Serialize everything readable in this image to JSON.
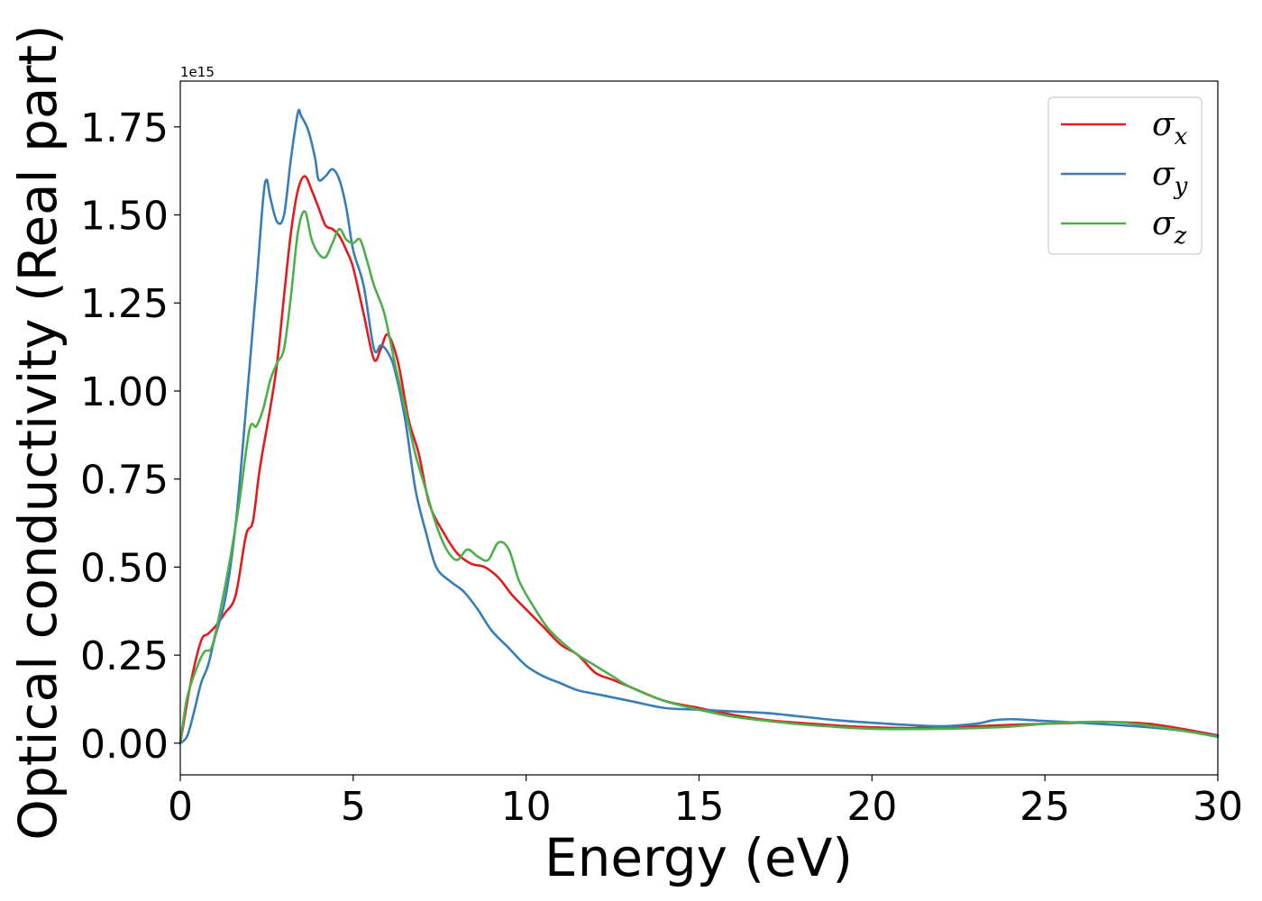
{
  "chart_data": {
    "type": "line",
    "title": "",
    "xlabel": "Energy (eV)",
    "ylabel": "Optical conductivity (Real part)",
    "y_offset_label": "1e15",
    "xlim": [
      0,
      30
    ],
    "ylim": [
      -0.09,
      1.88
    ],
    "y_scale_factor": 1000000000000000.0,
    "x_ticks": [
      0,
      5,
      10,
      15,
      20,
      25,
      30
    ],
    "x_tick_labels": [
      "0",
      "5",
      "10",
      "15",
      "20",
      "25",
      "30"
    ],
    "y_ticks": [
      0.0,
      0.25,
      0.5,
      0.75,
      1.0,
      1.25,
      1.5,
      1.75
    ],
    "y_tick_labels": [
      "0.00",
      "0.25",
      "0.50",
      "0.75",
      "1.00",
      "1.25",
      "1.50",
      "1.75"
    ],
    "grid": false,
    "legend": "upper right",
    "series": [
      {
        "name": "σx",
        "symbol": "σ",
        "subscript": "x",
        "color": "#e41a1c",
        "x": [
          0,
          0.3,
          0.6,
          0.8,
          1.0,
          1.3,
          1.6,
          1.9,
          2.1,
          2.3,
          2.6,
          2.8,
          3.0,
          3.2,
          3.4,
          3.6,
          3.8,
          4.0,
          4.2,
          4.4,
          4.6,
          4.8,
          5.0,
          5.3,
          5.6,
          5.8,
          6.0,
          6.3,
          6.6,
          6.9,
          7.2,
          7.6,
          8.0,
          8.4,
          8.8,
          9.2,
          9.6,
          10.0,
          10.5,
          11.0,
          11.5,
          12.0,
          12.5,
          13.0,
          14.0,
          15.0,
          16.0,
          17.0,
          18.0,
          19.0,
          20.0,
          21.0,
          22.0,
          23.0,
          24.0,
          25.0,
          26.0,
          27.0,
          28.0,
          29.0,
          30.0
        ],
        "y": [
          0.0,
          0.17,
          0.29,
          0.31,
          0.33,
          0.37,
          0.42,
          0.59,
          0.63,
          0.78,
          0.95,
          1.08,
          1.27,
          1.45,
          1.57,
          1.61,
          1.57,
          1.52,
          1.47,
          1.46,
          1.44,
          1.4,
          1.35,
          1.22,
          1.09,
          1.12,
          1.16,
          1.08,
          0.92,
          0.82,
          0.68,
          0.6,
          0.54,
          0.51,
          0.5,
          0.47,
          0.42,
          0.38,
          0.33,
          0.28,
          0.25,
          0.2,
          0.18,
          0.16,
          0.12,
          0.1,
          0.08,
          0.065,
          0.057,
          0.05,
          0.045,
          0.043,
          0.045,
          0.048,
          0.052,
          0.055,
          0.058,
          0.06,
          0.055,
          0.04,
          0.022
        ]
      },
      {
        "name": "σy",
        "symbol": "σ",
        "subscript": "y",
        "color": "#377eb8",
        "x": [
          0,
          0.2,
          0.4,
          0.6,
          0.8,
          1.0,
          1.3,
          1.6,
          1.9,
          2.2,
          2.4,
          2.5,
          2.6,
          2.8,
          3.0,
          3.2,
          3.4,
          3.5,
          3.7,
          3.9,
          4.0,
          4.2,
          4.4,
          4.6,
          4.8,
          5.0,
          5.3,
          5.6,
          5.8,
          6.0,
          6.2,
          6.5,
          6.8,
          7.1,
          7.4,
          7.8,
          8.2,
          8.6,
          9.0,
          9.5,
          10.0,
          10.5,
          11.0,
          11.5,
          12.0,
          13.0,
          14.0,
          15.0,
          16.0,
          17.0,
          18.0,
          19.0,
          20.0,
          21.0,
          22.0,
          23.0,
          23.5,
          24.0,
          24.5,
          25.0,
          26.0,
          27.0,
          28.0,
          29.0,
          30.0
        ],
        "y": [
          0.0,
          0.02,
          0.09,
          0.17,
          0.22,
          0.3,
          0.41,
          0.62,
          0.95,
          1.3,
          1.55,
          1.6,
          1.55,
          1.48,
          1.5,
          1.66,
          1.79,
          1.78,
          1.74,
          1.66,
          1.6,
          1.61,
          1.63,
          1.6,
          1.52,
          1.4,
          1.3,
          1.12,
          1.13,
          1.11,
          1.06,
          0.92,
          0.72,
          0.6,
          0.5,
          0.46,
          0.43,
          0.38,
          0.32,
          0.27,
          0.22,
          0.19,
          0.17,
          0.15,
          0.14,
          0.12,
          0.1,
          0.095,
          0.09,
          0.085,
          0.075,
          0.065,
          0.058,
          0.052,
          0.048,
          0.055,
          0.065,
          0.068,
          0.066,
          0.063,
          0.058,
          0.052,
          0.045,
          0.035,
          0.02
        ]
      },
      {
        "name": "σz",
        "symbol": "σ",
        "subscript": "z",
        "color": "#4daf4a",
        "x": [
          0,
          0.2,
          0.5,
          0.7,
          0.9,
          1.1,
          1.4,
          1.7,
          2.0,
          2.2,
          2.4,
          2.6,
          2.8,
          3.0,
          3.2,
          3.4,
          3.6,
          3.8,
          4.0,
          4.2,
          4.4,
          4.6,
          4.8,
          5.0,
          5.2,
          5.4,
          5.6,
          5.9,
          6.2,
          6.5,
          6.8,
          7.1,
          7.4,
          7.7,
          8.0,
          8.3,
          8.6,
          8.9,
          9.2,
          9.5,
          9.8,
          10.2,
          10.6,
          11.0,
          11.5,
          12.0,
          12.5,
          13.0,
          14.0,
          15.0,
          16.0,
          17.0,
          18.0,
          19.0,
          20.0,
          21.0,
          22.0,
          23.0,
          24.0,
          25.0,
          26.0,
          27.0,
          28.0,
          29.0,
          30.0
        ],
        "y": [
          0.0,
          0.13,
          0.22,
          0.26,
          0.27,
          0.35,
          0.5,
          0.68,
          0.89,
          0.9,
          0.95,
          1.03,
          1.08,
          1.12,
          1.27,
          1.45,
          1.51,
          1.43,
          1.39,
          1.38,
          1.42,
          1.46,
          1.43,
          1.42,
          1.43,
          1.37,
          1.3,
          1.22,
          1.08,
          0.95,
          0.82,
          0.72,
          0.62,
          0.55,
          0.52,
          0.55,
          0.53,
          0.52,
          0.57,
          0.55,
          0.46,
          0.39,
          0.33,
          0.29,
          0.25,
          0.22,
          0.19,
          0.16,
          0.12,
          0.095,
          0.075,
          0.063,
          0.053,
          0.046,
          0.041,
          0.04,
          0.041,
          0.043,
          0.047,
          0.055,
          0.06,
          0.06,
          0.05,
          0.035,
          0.018
        ]
      }
    ]
  }
}
